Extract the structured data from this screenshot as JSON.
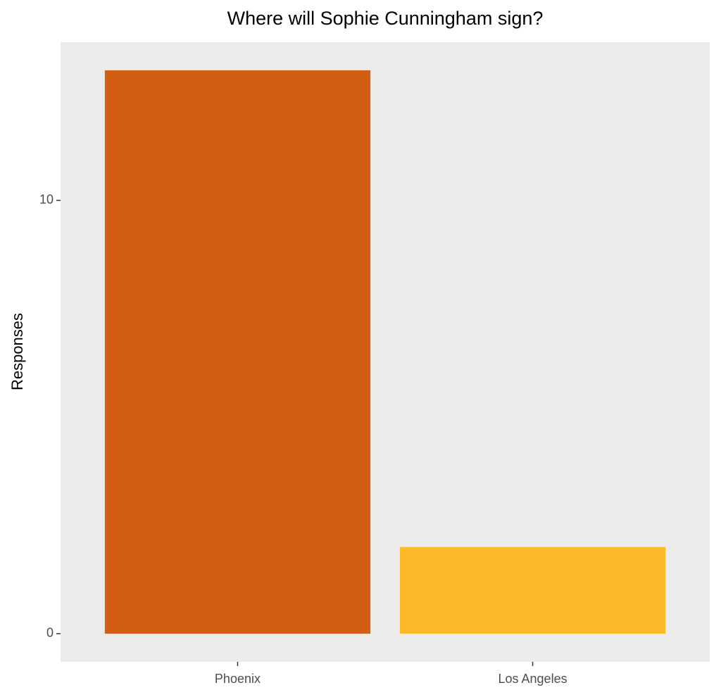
{
  "chart_data": {
    "type": "bar",
    "title": "Where will Sophie Cunningham sign?",
    "y_label": "Responses",
    "categories": [
      "Phoenix",
      "Los Angeles"
    ],
    "values": [
      13,
      2
    ],
    "colors": [
      "#d35e13",
      "#fdb927"
    ],
    "ylim": [
      -0.65,
      13.65
    ],
    "yticks": [
      0,
      10
    ],
    "grid": false
  }
}
